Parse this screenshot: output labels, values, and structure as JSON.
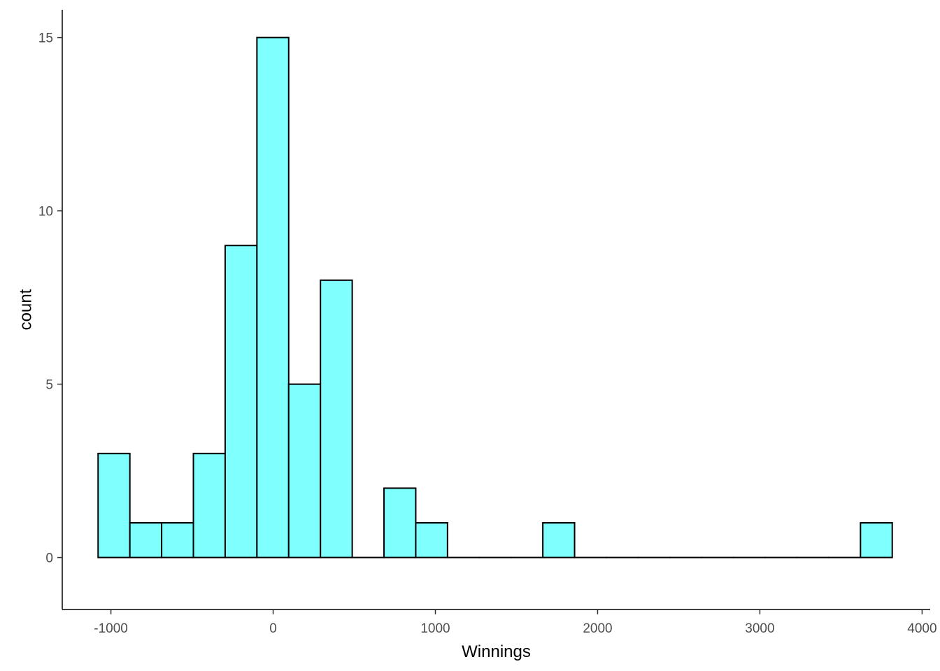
{
  "chart_data": {
    "type": "bar",
    "subtype": "histogram",
    "title": "",
    "xlabel": "Winnings",
    "ylabel": "count",
    "fill_color": "#80FFFF",
    "border_color": "#000000",
    "xlim": [
      -1300,
      4050
    ],
    "ylim": [
      -1.5,
      15.8
    ],
    "x_ticks": [
      -1000,
      0,
      1000,
      2000,
      3000,
      4000
    ],
    "x_tick_labels": [
      "-1000",
      "0",
      "1000",
      "2000",
      "3000",
      "4000"
    ],
    "y_ticks": [
      0,
      5,
      10,
      15
    ],
    "y_tick_labels": [
      "0",
      "5",
      "10",
      "15"
    ],
    "bin_width": 195.8,
    "bins": [
      {
        "x0": -1079,
        "x1": -883.2,
        "count": 3
      },
      {
        "x0": -883.2,
        "x1": -687.4,
        "count": 1
      },
      {
        "x0": -687.4,
        "x1": -491.6,
        "count": 1
      },
      {
        "x0": -491.6,
        "x1": -295.8,
        "count": 3
      },
      {
        "x0": -295.8,
        "x1": -100.0,
        "count": 9
      },
      {
        "x0": -100.0,
        "x1": 95.8,
        "count": 15
      },
      {
        "x0": 95.8,
        "x1": 291.6,
        "count": 5
      },
      {
        "x0": 291.6,
        "x1": 487.4,
        "count": 8
      },
      {
        "x0": 487.4,
        "x1": 683.2,
        "count": 0
      },
      {
        "x0": 683.2,
        "x1": 879.0,
        "count": 2
      },
      {
        "x0": 879.0,
        "x1": 1074.8,
        "count": 1
      },
      {
        "x0": 1074.8,
        "x1": 1270.6,
        "count": 0
      },
      {
        "x0": 1270.6,
        "x1": 1466.4,
        "count": 0
      },
      {
        "x0": 1466.4,
        "x1": 1662.2,
        "count": 0
      },
      {
        "x0": 1662.2,
        "x1": 1858.0,
        "count": 1
      },
      {
        "x0": 1858.0,
        "x1": 2053.8,
        "count": 0
      },
      {
        "x0": 2053.8,
        "x1": 2249.6,
        "count": 0
      },
      {
        "x0": 2249.6,
        "x1": 2445.4,
        "count": 0
      },
      {
        "x0": 2445.4,
        "x1": 2641.2,
        "count": 0
      },
      {
        "x0": 2641.2,
        "x1": 2837.0,
        "count": 0
      },
      {
        "x0": 2837.0,
        "x1": 3032.8,
        "count": 0
      },
      {
        "x0": 3032.8,
        "x1": 3228.6,
        "count": 0
      },
      {
        "x0": 3228.6,
        "x1": 3424.4,
        "count": 0
      },
      {
        "x0": 3424.4,
        "x1": 3620.2,
        "count": 0
      },
      {
        "x0": 3620.2,
        "x1": 3816.0,
        "count": 1
      }
    ],
    "grid": false,
    "legend": "none"
  }
}
